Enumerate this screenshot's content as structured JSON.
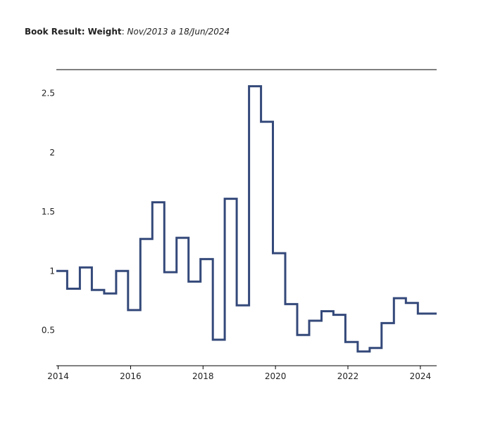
{
  "title": {
    "label": "Book Result: Weight",
    "separator": ":",
    "range": "Nov/2013 a 18/Jun/2024"
  },
  "colors": {
    "series": "#34497a",
    "axis": "#000000",
    "text": "#222222"
  },
  "chart_data": {
    "type": "line",
    "step": true,
    "title": "Book Result: Weight: Nov/2013 a 18/Jun/2024",
    "xlabel": "",
    "ylabel": "",
    "grid": false,
    "xlim": [
      2013.95,
      2024.45
    ],
    "ylim": [
      0.2,
      2.7
    ],
    "x_ticks": [
      2014,
      2016,
      2018,
      2020,
      2022,
      2024
    ],
    "x_tick_labels": [
      "2014",
      "2016",
      "2018",
      "2020",
      "2022",
      "2024"
    ],
    "y_ticks": [
      0.5,
      1,
      1.5,
      2,
      2.5
    ],
    "y_tick_labels": [
      "0.5",
      "1",
      "1.5",
      "2",
      "2.5"
    ],
    "series": [
      {
        "name": "",
        "x": [
          2013.95,
          2014.25,
          2014.6,
          2014.93,
          2015.27,
          2015.6,
          2015.93,
          2016.27,
          2016.6,
          2016.93,
          2017.27,
          2017.6,
          2017.93,
          2018.27,
          2018.6,
          2018.93,
          2019.27,
          2019.6,
          2019.93,
          2020.27,
          2020.6,
          2020.93,
          2021.27,
          2021.6,
          2021.93,
          2022.27,
          2022.6,
          2022.93,
          2023.27,
          2023.6,
          2023.93,
          2024.27
        ],
        "values": [
          1.0,
          0.85,
          1.03,
          0.84,
          0.81,
          1.0,
          0.67,
          1.27,
          1.58,
          0.99,
          1.28,
          0.91,
          1.1,
          0.42,
          1.61,
          0.71,
          2.56,
          2.26,
          1.15,
          0.72,
          0.46,
          0.58,
          0.66,
          0.63,
          0.4,
          0.32,
          0.35,
          0.56,
          0.77,
          0.73,
          0.64,
          0.64
        ],
        "x_end": 2024.45
      }
    ]
  }
}
